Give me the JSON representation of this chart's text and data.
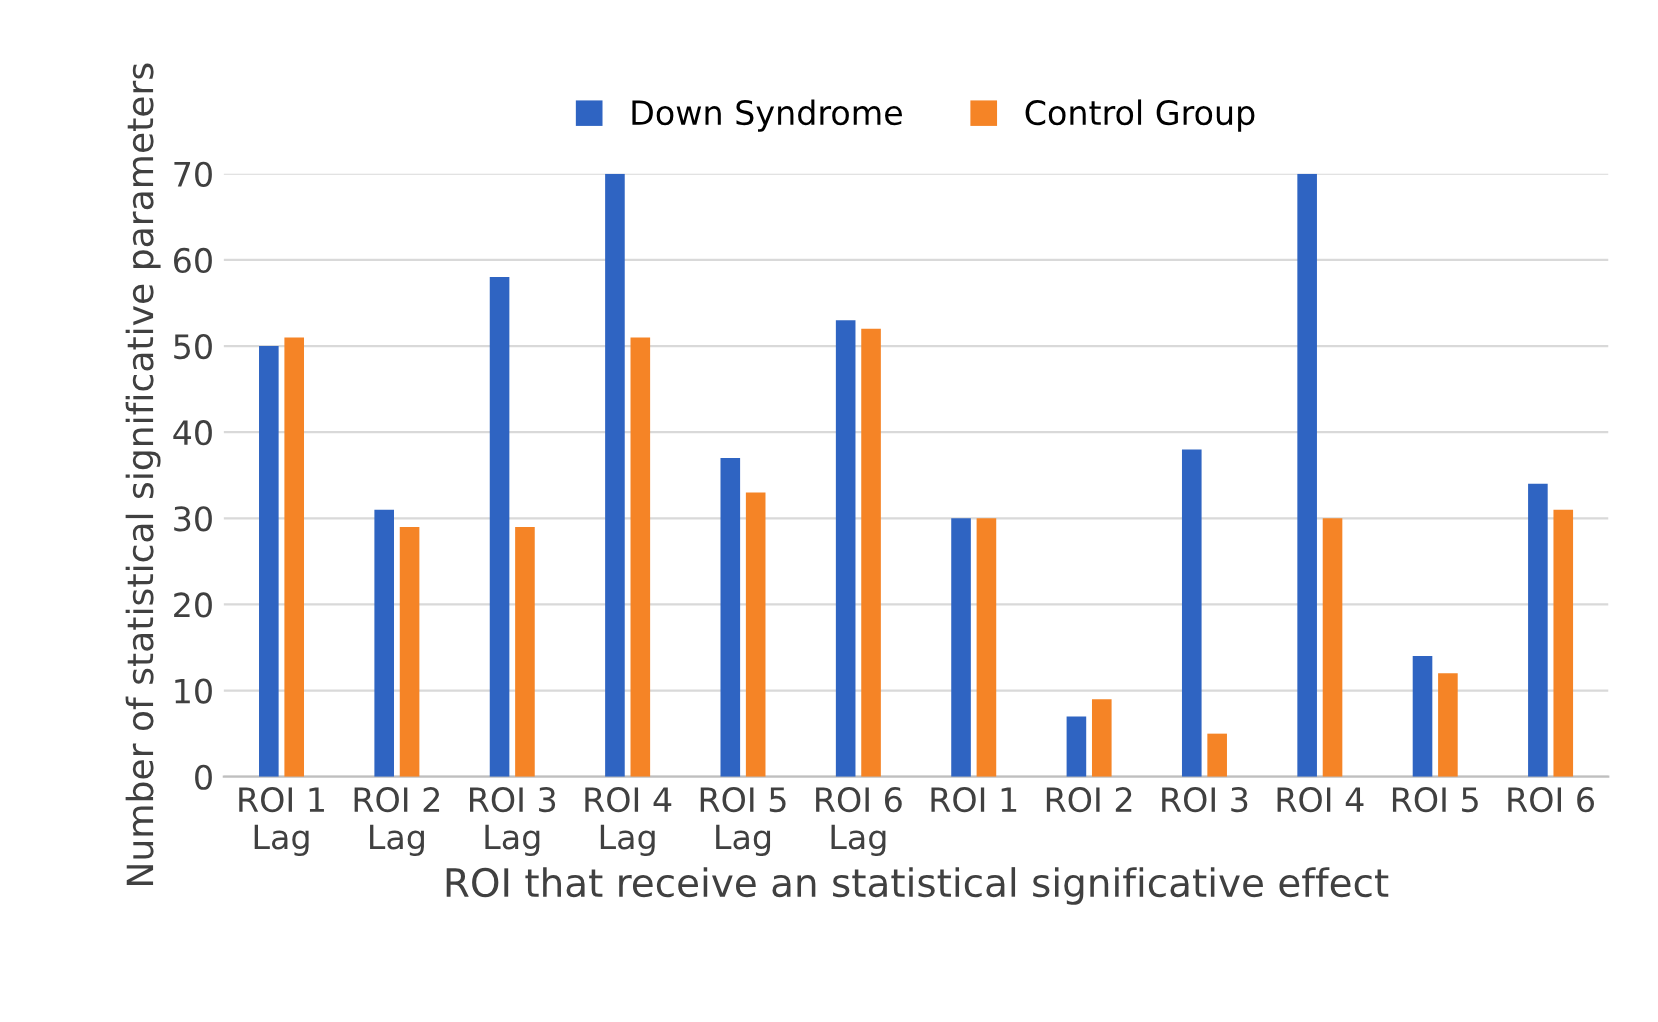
{
  "chart_data": {
    "type": "bar",
    "xlabel": "ROI that receive an statistical significative effect",
    "ylabel": "Number of statistical significative parameters",
    "categories": [
      "ROI 1\nLag",
      "ROI 2\nLag",
      "ROI 3\nLag",
      "ROI 4\nLag",
      "ROI 5\nLag",
      "ROI 6\nLag",
      "ROI 1",
      "ROI 2",
      "ROI 3",
      "ROI 4",
      "ROI 5",
      "ROI 6"
    ],
    "series": [
      {
        "name": "Down Syndrome",
        "color": "#2f64c2",
        "values": [
          50,
          31,
          58,
          70,
          37,
          53,
          30,
          7,
          38,
          70,
          14,
          34
        ]
      },
      {
        "name": "Control Group",
        "color": "#f58426",
        "values": [
          51,
          29,
          29,
          51,
          33,
          52,
          30,
          9,
          5,
          30,
          12,
          31
        ]
      }
    ],
    "ylim": [
      0,
      70
    ],
    "yticks": [
      0,
      10,
      20,
      30,
      40,
      50,
      60,
      70
    ],
    "grid": "y",
    "legend": "top"
  }
}
